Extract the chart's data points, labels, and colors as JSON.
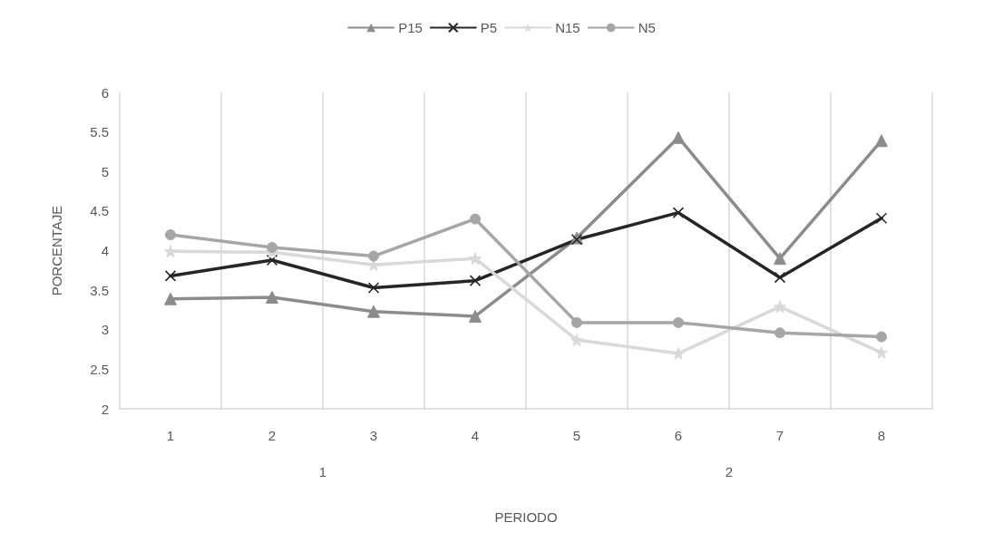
{
  "chart_data": {
    "type": "line",
    "xlabel": "PERIODO",
    "ylabel": "PORCENTAJE",
    "categories": [
      "1",
      "2",
      "3",
      "4",
      "5",
      "6",
      "7",
      "8"
    ],
    "annotations": [
      "1",
      "2"
    ],
    "series": [
      {
        "name": "P15",
        "color": "#8c8c8c",
        "marker": "triangle",
        "values": [
          3.39,
          3.41,
          3.23,
          3.17,
          4.16,
          5.43,
          3.9,
          5.39
        ]
      },
      {
        "name": "P5",
        "color": "#262626",
        "marker": "cross",
        "values": [
          3.68,
          3.88,
          3.53,
          3.62,
          4.14,
          4.48,
          3.66,
          4.41
        ]
      },
      {
        "name": "N15",
        "color": "#d9d9d9",
        "marker": "star",
        "values": [
          3.99,
          3.98,
          3.82,
          3.9,
          2.87,
          2.7,
          3.29,
          2.71
        ]
      },
      {
        "name": "N5",
        "color": "#a6a6a6",
        "marker": "circle",
        "values": [
          4.2,
          4.04,
          3.93,
          4.4,
          3.09,
          3.09,
          2.96,
          2.91
        ]
      }
    ],
    "ylim": [
      2,
      6
    ],
    "yticks": [
      2,
      2.5,
      3,
      3.5,
      4,
      4.5,
      5,
      5.5,
      6
    ],
    "grid": "x",
    "legend": "top",
    "line_style": "solid"
  }
}
